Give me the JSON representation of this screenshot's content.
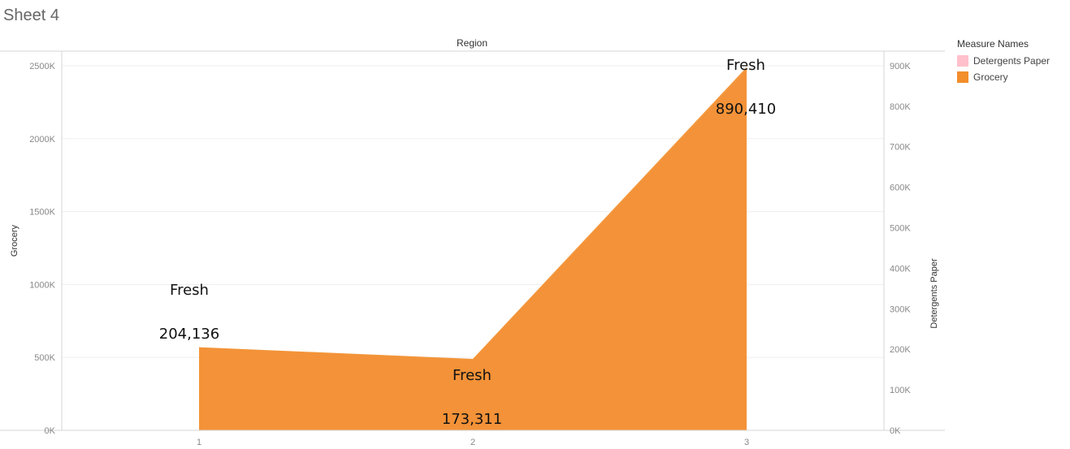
{
  "sheet": {
    "title": "Sheet 4"
  },
  "header": {
    "column_label": "Region"
  },
  "legend": {
    "title": "Measure Names",
    "items": [
      {
        "label": "Detergents Paper",
        "color": "#ffc0cb"
      },
      {
        "label": "Grocery",
        "color": "#f28e2b"
      }
    ]
  },
  "chart_data": {
    "type": "area",
    "categories": [
      "1",
      "2",
      "3"
    ],
    "y_left": {
      "label": "Grocery",
      "range": [
        0,
        2600000
      ],
      "ticks": [
        0,
        500000,
        1000000,
        1500000,
        2000000,
        2500000
      ],
      "tick_labels": [
        "0K",
        "500K",
        "1000K",
        "1500K",
        "2000K",
        "2500K"
      ]
    },
    "y_right": {
      "label": "Detergents Paper",
      "range": [
        0,
        936000
      ],
      "ticks": [
        0,
        100000,
        200000,
        300000,
        400000,
        500000,
        600000,
        700000,
        800000,
        900000
      ],
      "tick_labels": [
        "0K",
        "100K",
        "200K",
        "300K",
        "400K",
        "500K",
        "600K",
        "700K",
        "800K",
        "900K"
      ]
    },
    "series": [
      {
        "name": "Detergents Paper",
        "axis": "right",
        "color": "#ffc0cb",
        "values": [
          204136,
          173311,
          890410
        ]
      },
      {
        "name": "Grocery",
        "axis": "left",
        "color": "#f28e2b",
        "values": [
          570000,
          490000,
          2490000
        ]
      }
    ],
    "annotations": [
      {
        "category": "1",
        "label": "Fresh",
        "value_label": "204,136"
      },
      {
        "category": "2",
        "label": "Fresh",
        "value_label": "173,311"
      },
      {
        "category": "3",
        "label": "Fresh",
        "value_label": "890,410"
      }
    ],
    "grid": true
  }
}
